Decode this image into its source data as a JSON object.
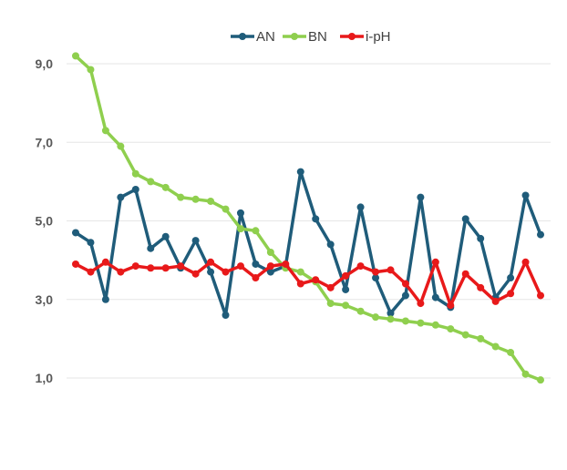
{
  "chart_data": {
    "type": "line",
    "title": "",
    "xlabel": "",
    "ylabel": "",
    "ylim": [
      1.0,
      9.0
    ],
    "yticks": [
      "1,0",
      "3,0",
      "5,0",
      "7,0",
      "9,0"
    ],
    "grid": true,
    "legend_position": "top-center",
    "x": [
      1,
      2,
      3,
      4,
      5,
      6,
      7,
      8,
      9,
      10,
      11,
      12,
      13,
      14,
      15,
      16,
      17,
      18,
      19,
      20,
      21,
      22,
      23,
      24,
      25,
      26,
      27,
      28,
      29,
      30,
      31,
      32
    ],
    "series": [
      {
        "name": "AN",
        "color": "#1f5c7a",
        "values": [
          4.7,
          4.45,
          3.0,
          5.6,
          5.8,
          4.3,
          4.6,
          3.8,
          4.5,
          3.7,
          2.6,
          5.2,
          3.9,
          3.7,
          3.85,
          6.25,
          5.05,
          4.4,
          3.25,
          5.35,
          3.55,
          2.65,
          3.1,
          5.6,
          3.05,
          2.8,
          5.05,
          4.55,
          3.05,
          3.55,
          5.65,
          4.65
        ]
      },
      {
        "name": "BN",
        "color": "#8fcf4e",
        "values": [
          9.2,
          8.85,
          7.3,
          6.9,
          6.2,
          6.0,
          5.85,
          5.6,
          5.55,
          5.5,
          5.3,
          4.8,
          4.75,
          4.2,
          3.8,
          3.7,
          3.45,
          2.9,
          2.85,
          2.7,
          2.55,
          2.5,
          2.45,
          2.4,
          2.35,
          2.25,
          2.1,
          2.0,
          1.8,
          1.65,
          1.1,
          0.95
        ]
      },
      {
        "name": "i-pH",
        "color": "#e8191a",
        "values": [
          3.9,
          3.7,
          3.95,
          3.7,
          3.85,
          3.8,
          3.8,
          3.85,
          3.65,
          3.95,
          3.7,
          3.85,
          3.55,
          3.85,
          3.9,
          3.4,
          3.5,
          3.3,
          3.6,
          3.85,
          3.7,
          3.75,
          3.4,
          2.9,
          3.95,
          2.85,
          3.65,
          3.3,
          2.95,
          3.15,
          3.95,
          3.1
        ]
      }
    ]
  }
}
